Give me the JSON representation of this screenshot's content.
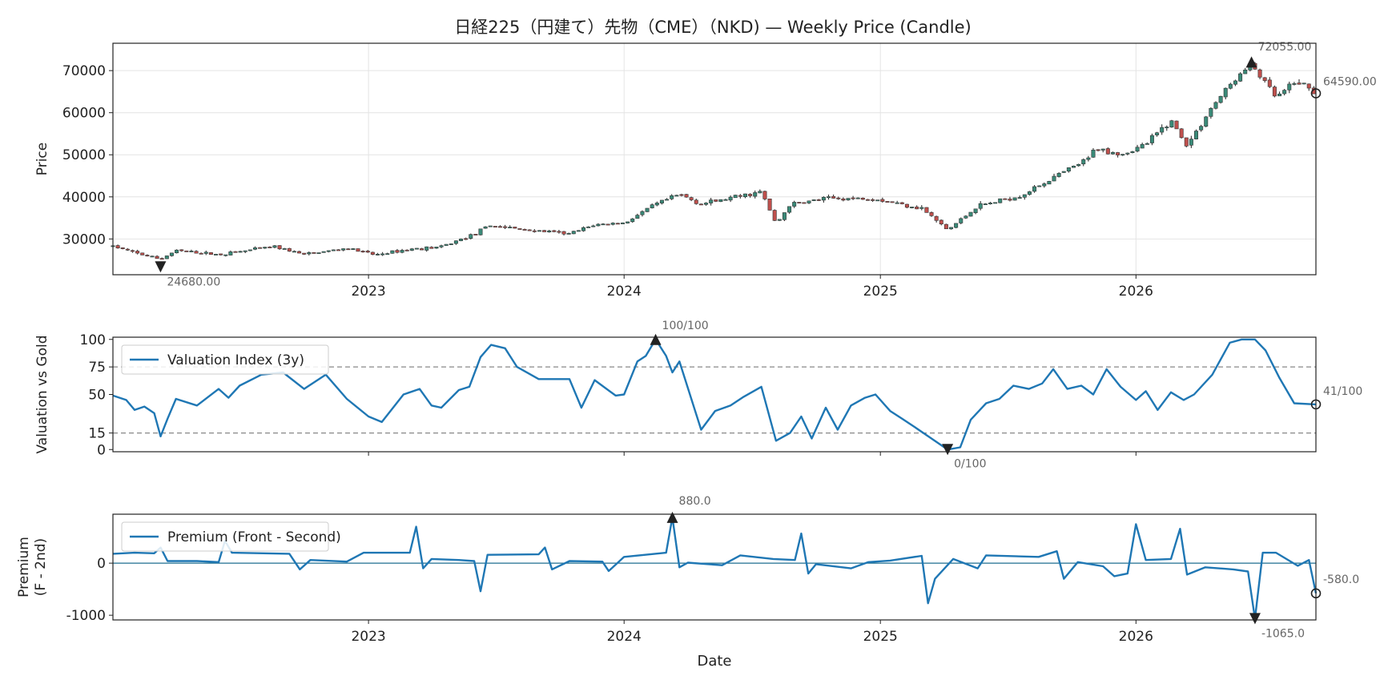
{
  "chart_data": [
    {
      "type": "candlestick",
      "title": "日経225（円建て）先物（CME）（NKD) — Weekly Price (Candle)",
      "ylabel": "Price",
      "ylim": [
        21500,
        76500
      ],
      "yticks": [
        "30000",
        "40000",
        "50000",
        "60000",
        "70000"
      ],
      "x_start": "2022-01-01",
      "x_end": "2026-09-15",
      "xticks": [
        "2023",
        "2024",
        "2025",
        "2026"
      ],
      "grid": true,
      "colors": {
        "up": "#3a8a78",
        "down": "#c0504d",
        "wick": "#333333"
      },
      "close_anchors": [
        [
          "2022-01-01",
          28300
        ],
        [
          "2022-02-01",
          26700
        ],
        [
          "2022-03-10",
          25200
        ],
        [
          "2022-04-01",
          27200
        ],
        [
          "2022-06-01",
          26300
        ],
        [
          "2022-08-20",
          28200
        ],
        [
          "2022-10-01",
          26300
        ],
        [
          "2022-12-01",
          27800
        ],
        [
          "2023-01-10",
          26200
        ],
        [
          "2023-03-01",
          27600
        ],
        [
          "2023-04-15",
          28100
        ],
        [
          "2023-06-01",
          31200
        ],
        [
          "2023-06-25",
          33200
        ],
        [
          "2023-08-01",
          32400
        ],
        [
          "2023-10-15",
          31200
        ],
        [
          "2023-11-20",
          33400
        ],
        [
          "2024-01-01",
          33800
        ],
        [
          "2024-02-15",
          38200
        ],
        [
          "2024-03-20",
          40600
        ],
        [
          "2024-04-20",
          38300
        ],
        [
          "2024-07-15",
          41200
        ],
        [
          "2024-08-05",
          33500
        ],
        [
          "2024-08-25",
          38200
        ],
        [
          "2024-10-15",
          39600
        ],
        [
          "2024-12-20",
          39700
        ],
        [
          "2025-03-01",
          37300
        ],
        [
          "2025-04-07",
          32100
        ],
        [
          "2025-05-20",
          37800
        ],
        [
          "2025-07-20",
          40300
        ],
        [
          "2025-10-25",
          49000
        ],
        [
          "2025-11-01",
          51500
        ],
        [
          "2025-12-15",
          50200
        ],
        [
          "2026-01-15",
          52500
        ],
        [
          "2026-02-20",
          58200
        ],
        [
          "2026-03-15",
          52100
        ],
        [
          "2026-04-20",
          61500
        ],
        [
          "2026-05-20",
          67500
        ],
        [
          "2026-06-15",
          71500
        ],
        [
          "2026-07-20",
          63500
        ],
        [
          "2026-08-20",
          67500
        ],
        [
          "2026-09-15",
          64590
        ]
      ],
      "annotations": [
        {
          "label": "72055.00",
          "date": "2026-06-15",
          "value": 72055,
          "marker": "max"
        },
        {
          "label": "24680.00",
          "date": "2022-03-10",
          "value": 24680,
          "marker": "min"
        },
        {
          "label": "64590.00",
          "date": "2026-09-15",
          "value": 64590,
          "marker": "last"
        }
      ]
    },
    {
      "type": "line",
      "ylabel": "Valuation vs Gold",
      "ylim": [
        -2,
        102
      ],
      "yticks": [
        "0",
        "15",
        "50",
        "75",
        "100"
      ],
      "reference_lines": [
        15,
        75
      ],
      "x_start": "2022-01-01",
      "x_end": "2026-09-15",
      "color": "#1f77b4",
      "legend": "top-left",
      "series": [
        {
          "name": "Valuation Index (3y)",
          "points": [
            [
              "2022-01-01",
              49
            ],
            [
              "2022-01-20",
              45
            ],
            [
              "2022-02-01",
              36
            ],
            [
              "2022-02-15",
              39
            ],
            [
              "2022-03-01",
              33
            ],
            [
              "2022-03-10",
              12
            ],
            [
              "2022-03-20",
              28
            ],
            [
              "2022-04-01",
              46
            ],
            [
              "2022-05-01",
              40
            ],
            [
              "2022-06-01",
              55
            ],
            [
              "2022-06-15",
              47
            ],
            [
              "2022-07-01",
              58
            ],
            [
              "2022-08-01",
              68
            ],
            [
              "2022-09-01",
              70
            ],
            [
              "2022-10-01",
              55
            ],
            [
              "2022-11-01",
              68
            ],
            [
              "2022-12-01",
              46
            ],
            [
              "2023-01-01",
              30
            ],
            [
              "2023-01-20",
              25
            ],
            [
              "2023-02-20",
              50
            ],
            [
              "2023-03-15",
              55
            ],
            [
              "2023-04-01",
              40
            ],
            [
              "2023-04-15",
              38
            ],
            [
              "2023-05-10",
              54
            ],
            [
              "2023-05-25",
              57
            ],
            [
              "2023-06-10",
              84
            ],
            [
              "2023-06-25",
              95
            ],
            [
              "2023-07-15",
              92
            ],
            [
              "2023-08-01",
              75
            ],
            [
              "2023-09-01",
              64
            ],
            [
              "2023-10-15",
              64
            ],
            [
              "2023-11-01",
              38
            ],
            [
              "2023-11-20",
              63
            ],
            [
              "2023-12-20",
              49
            ],
            [
              "2024-01-01",
              50
            ],
            [
              "2024-01-20",
              80
            ],
            [
              "2024-02-01",
              85
            ],
            [
              "2024-02-15",
              100
            ],
            [
              "2024-03-01",
              85
            ],
            [
              "2024-03-10",
              70
            ],
            [
              "2024-03-20",
              80
            ],
            [
              "2024-04-20",
              18
            ],
            [
              "2024-05-10",
              35
            ],
            [
              "2024-06-01",
              40
            ],
            [
              "2024-06-20",
              48
            ],
            [
              "2024-07-15",
              57
            ],
            [
              "2024-08-05",
              8
            ],
            [
              "2024-08-25",
              15
            ],
            [
              "2024-09-10",
              30
            ],
            [
              "2024-09-25",
              10
            ],
            [
              "2024-10-15",
              38
            ],
            [
              "2024-11-01",
              18
            ],
            [
              "2024-11-20",
              40
            ],
            [
              "2024-12-10",
              47
            ],
            [
              "2024-12-25",
              50
            ],
            [
              "2025-01-15",
              35
            ],
            [
              "2025-02-01",
              28
            ],
            [
              "2025-02-20",
              20
            ],
            [
              "2025-03-15",
              10
            ],
            [
              "2025-04-07",
              0
            ],
            [
              "2025-04-25",
              2
            ],
            [
              "2025-05-10",
              27
            ],
            [
              "2025-06-01",
              42
            ],
            [
              "2025-06-20",
              46
            ],
            [
              "2025-07-10",
              58
            ],
            [
              "2025-08-01",
              55
            ],
            [
              "2025-08-20",
              60
            ],
            [
              "2025-09-05",
              73
            ],
            [
              "2025-09-25",
              55
            ],
            [
              "2025-10-15",
              58
            ],
            [
              "2025-11-01",
              50
            ],
            [
              "2025-11-20",
              73
            ],
            [
              "2025-12-10",
              57
            ],
            [
              "2026-01-01",
              45
            ],
            [
              "2026-01-15",
              53
            ],
            [
              "2026-02-01",
              36
            ],
            [
              "2026-02-20",
              52
            ],
            [
              "2026-03-10",
              45
            ],
            [
              "2026-03-25",
              50
            ],
            [
              "2026-04-20",
              68
            ],
            [
              "2026-05-15",
              97
            ],
            [
              "2026-06-01",
              100
            ],
            [
              "2026-06-20",
              100
            ],
            [
              "2026-07-05",
              90
            ],
            [
              "2026-07-25",
              65
            ],
            [
              "2026-08-15",
              42
            ],
            [
              "2026-09-15",
              41
            ]
          ]
        }
      ],
      "annotations": [
        {
          "label": "100/100",
          "date": "2024-02-15",
          "value": 100,
          "marker": "max"
        },
        {
          "label": "0/100",
          "date": "2025-04-07",
          "value": 0,
          "marker": "min"
        },
        {
          "label": "41/100",
          "date": "2026-09-15",
          "value": 41,
          "marker": "last"
        }
      ]
    },
    {
      "type": "line",
      "ylabel": "Premium\n(F - 2nd)",
      "xlabel": "Date",
      "ylim": [
        -1090,
        940
      ],
      "yticks": [
        "-1000",
        "0"
      ],
      "reference_lines": [
        0
      ],
      "x_start": "2022-01-01",
      "x_end": "2026-09-15",
      "xticks": [
        "2023",
        "2024",
        "2025",
        "2026"
      ],
      "color": "#1f77b4",
      "legend": "top-left",
      "series": [
        {
          "name": "Premium (Front - Second)",
          "points": [
            [
              "2022-01-01",
              180
            ],
            [
              "2022-02-01",
              200
            ],
            [
              "2022-03-01",
              190
            ],
            [
              "2022-03-10",
              300
            ],
            [
              "2022-03-20",
              40
            ],
            [
              "2022-05-01",
              40
            ],
            [
              "2022-06-01",
              20
            ],
            [
              "2022-06-10",
              430
            ],
            [
              "2022-06-20",
              200
            ],
            [
              "2022-09-10",
              180
            ],
            [
              "2022-09-25",
              -120
            ],
            [
              "2022-10-10",
              60
            ],
            [
              "2022-12-01",
              30
            ],
            [
              "2022-12-25",
              200
            ],
            [
              "2023-03-01",
              200
            ],
            [
              "2023-03-10",
              700
            ],
            [
              "2023-03-20",
              -100
            ],
            [
              "2023-04-01",
              80
            ],
            [
              "2023-05-10",
              60
            ],
            [
              "2023-06-01",
              40
            ],
            [
              "2023-06-10",
              -540
            ],
            [
              "2023-06-20",
              160
            ],
            [
              "2023-09-01",
              170
            ],
            [
              "2023-09-10",
              300
            ],
            [
              "2023-09-20",
              -120
            ],
            [
              "2023-10-15",
              40
            ],
            [
              "2023-12-01",
              30
            ],
            [
              "2023-12-10",
              -150
            ],
            [
              "2024-01-01",
              120
            ],
            [
              "2024-03-01",
              200
            ],
            [
              "2024-03-10",
              880
            ],
            [
              "2024-03-20",
              -80
            ],
            [
              "2024-04-01",
              10
            ],
            [
              "2024-05-20",
              -40
            ],
            [
              "2024-06-15",
              150
            ],
            [
              "2024-08-01",
              80
            ],
            [
              "2024-09-01",
              60
            ],
            [
              "2024-09-10",
              570
            ],
            [
              "2024-09-20",
              -200
            ],
            [
              "2024-10-01",
              -20
            ],
            [
              "2024-11-20",
              -100
            ],
            [
              "2024-12-15",
              20
            ],
            [
              "2025-01-15",
              50
            ],
            [
              "2025-03-01",
              140
            ],
            [
              "2025-03-10",
              -770
            ],
            [
              "2025-03-20",
              -300
            ],
            [
              "2025-04-15",
              80
            ],
            [
              "2025-05-20",
              -100
            ],
            [
              "2025-06-01",
              150
            ],
            [
              "2025-08-15",
              120
            ],
            [
              "2025-09-10",
              230
            ],
            [
              "2025-09-20",
              -300
            ],
            [
              "2025-10-10",
              20
            ],
            [
              "2025-11-15",
              -60
            ],
            [
              "2025-12-01",
              -250
            ],
            [
              "2025-12-20",
              -200
            ],
            [
              "2026-01-01",
              750
            ],
            [
              "2026-01-15",
              60
            ],
            [
              "2026-02-20",
              80
            ],
            [
              "2026-03-05",
              660
            ],
            [
              "2026-03-15",
              -220
            ],
            [
              "2026-04-10",
              -80
            ],
            [
              "2026-05-20",
              -120
            ],
            [
              "2026-06-10",
              -160
            ],
            [
              "2026-06-20",
              -1065
            ],
            [
              "2026-07-01",
              200
            ],
            [
              "2026-07-20",
              200
            ],
            [
              "2026-08-20",
              -50
            ],
            [
              "2026-09-05",
              60
            ],
            [
              "2026-09-15",
              -580
            ]
          ]
        }
      ],
      "annotations": [
        {
          "label": "880.0",
          "date": "2024-03-10",
          "value": 880,
          "marker": "max"
        },
        {
          "label": "-1065.0",
          "date": "2026-06-20",
          "value": -1065,
          "marker": "min"
        },
        {
          "label": "-580.0",
          "date": "2026-09-15",
          "value": -580,
          "marker": "last"
        }
      ]
    }
  ]
}
